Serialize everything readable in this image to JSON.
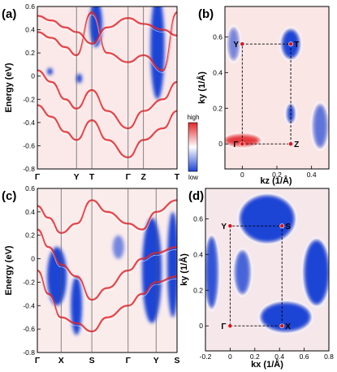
{
  "panel_labels": [
    "(a)",
    "(b)",
    "(c)",
    "(d)"
  ],
  "colorbar": {
    "high_label": "high",
    "low_label": "low",
    "colors": [
      "#1e44d6",
      "#ffffff",
      "#e3262a"
    ]
  },
  "chart_data": [
    {
      "id": "a",
      "type": "heatmap",
      "title": "",
      "ylabel": "Energy (eV)",
      "xlabel": "",
      "ylim": [
        -0.8,
        0.6
      ],
      "yticks": [
        "0.6",
        "0.4",
        "0.2",
        "0",
        "-0.2",
        "-0.4",
        "-0.6",
        "-0.8"
      ],
      "ytick_values": [
        0.6,
        0.4,
        0.2,
        0,
        -0.2,
        -0.4,
        -0.6,
        -0.8
      ],
      "kpath": [
        "Γ",
        "Y",
        "T",
        "Γ",
        "Z",
        "T"
      ],
      "kpath_positions": [
        0,
        0.28,
        0.39,
        0.65,
        0.76,
        1.0
      ],
      "bands": [
        {
          "name": "",
          "x": [
            0,
            0.1,
            0.2,
            0.28,
            0.39,
            0.5,
            0.65,
            0.76,
            0.9,
            1.0
          ],
          "y": [
            0.38,
            0.33,
            0.25,
            0.18,
            0.55,
            0.2,
            0.12,
            0.18,
            0.05,
            0.55
          ]
        },
        {
          "name": "",
          "x": [
            0,
            0.1,
            0.2,
            0.28,
            0.39,
            0.5,
            0.65,
            0.76,
            0.9,
            1.0
          ],
          "y": [
            0.05,
            -0.05,
            -0.2,
            -0.28,
            -0.12,
            -0.3,
            -0.45,
            -0.3,
            -0.2,
            -0.05
          ]
        },
        {
          "name": "",
          "x": [
            0,
            0.1,
            0.2,
            0.28,
            0.39,
            0.5,
            0.65,
            0.76,
            0.9,
            1.0
          ],
          "y": [
            -0.25,
            -0.35,
            -0.48,
            -0.55,
            -0.38,
            -0.55,
            -0.7,
            -0.55,
            -0.45,
            -0.3
          ]
        },
        {
          "name": "",
          "x": [
            0,
            0.1,
            0.2,
            0.28,
            0.39,
            0.5,
            0.65,
            0.76,
            0.9,
            1.0
          ],
          "y": [
            0.52,
            0.48,
            0.42,
            0.38,
            0.28,
            0.42,
            0.5,
            0.45,
            0.4,
            0.35
          ]
        }
      ],
      "pockets": [
        {
          "name": "",
          "x": 0.42,
          "y": 0.45,
          "rx": 0.045,
          "ry": 0.2,
          "level": -1
        },
        {
          "name": "",
          "x": 0.86,
          "y": 0.25,
          "rx": 0.05,
          "ry": 0.45,
          "level": -1
        },
        {
          "name": "",
          "x": 0.3,
          "y": -0.02,
          "rx": 0.02,
          "ry": 0.04,
          "level": -1
        },
        {
          "name": "",
          "x": 0.09,
          "y": 0.04,
          "rx": 0.02,
          "ry": 0.03,
          "level": -1
        }
      ]
    },
    {
      "id": "b",
      "type": "heatmap",
      "title": "",
      "xlabel": "kz (1/Å)",
      "ylabel": "ky (1/Å)",
      "xlim": [
        -0.1,
        0.5
      ],
      "ylim": [
        -0.14,
        0.77
      ],
      "xticks": [
        "0",
        "0.2",
        "0.4"
      ],
      "xtick_values": [
        0,
        0.2,
        0.4
      ],
      "yticks": [
        "0",
        "0.2",
        "0.4",
        "0.6"
      ],
      "ytick_values": [
        0,
        0.2,
        0.4,
        0.6
      ],
      "points": [
        {
          "label": "Γ",
          "x": 0,
          "y": 0
        },
        {
          "label": "Z",
          "x": 0.28,
          "y": 0
        },
        {
          "label": "Y",
          "x": 0,
          "y": 0.56
        },
        {
          "label": "T",
          "x": 0.28,
          "y": 0.56
        }
      ],
      "pockets": [
        {
          "name": "",
          "x": 0.28,
          "y": 0.56,
          "rx": 0.05,
          "ry": 0.08,
          "level": -1
        },
        {
          "name": "",
          "x": 0.28,
          "y": 0.17,
          "rx": 0.02,
          "ry": 0.05,
          "level": -1
        },
        {
          "name": "",
          "x": -0.05,
          "y": 0.56,
          "rx": 0.03,
          "ry": 0.09,
          "level": -0.6
        },
        {
          "name": "",
          "x": 0.45,
          "y": 0.1,
          "rx": 0.04,
          "ry": 0.12,
          "level": -0.7
        },
        {
          "name": "",
          "x": 0.0,
          "y": 0.02,
          "rx": 0.1,
          "ry": 0.03,
          "level": 0.9
        }
      ]
    },
    {
      "id": "c",
      "type": "heatmap",
      "title": "",
      "ylabel": "Energy (eV)",
      "xlabel": "",
      "ylim": [
        -0.8,
        0.6
      ],
      "yticks": [
        "0.6",
        "0.4",
        "0.2",
        "0",
        "-0.2",
        "-0.4",
        "-0.6",
        "-0.8"
      ],
      "ytick_values": [
        0.6,
        0.4,
        0.2,
        0,
        -0.2,
        -0.4,
        -0.6,
        -0.8
      ],
      "kpath": [
        "Γ",
        "X",
        "S",
        "Γ",
        "Y",
        "S"
      ],
      "kpath_positions": [
        0,
        0.17,
        0.39,
        0.65,
        0.85,
        1.0
      ],
      "bands": [
        {
          "name": "",
          "x": [
            0,
            0.08,
            0.17,
            0.28,
            0.39,
            0.5,
            0.65,
            0.75,
            0.85,
            1.0
          ],
          "y": [
            0.25,
            0.1,
            -0.05,
            -0.15,
            -0.35,
            -0.25,
            -0.1,
            0.0,
            0.05,
            0.1
          ]
        },
        {
          "name": "",
          "x": [
            0,
            0.08,
            0.17,
            0.28,
            0.39,
            0.5,
            0.65,
            0.75,
            0.85,
            1.0
          ],
          "y": [
            -0.1,
            -0.3,
            -0.5,
            -0.55,
            -0.62,
            -0.5,
            -0.4,
            -0.3,
            -0.2,
            -0.15
          ]
        },
        {
          "name": "",
          "x": [
            0,
            0.08,
            0.17,
            0.28,
            0.39,
            0.5,
            0.65,
            0.75,
            0.85,
            1.0
          ],
          "y": [
            0.45,
            0.35,
            0.22,
            0.3,
            0.5,
            0.4,
            0.3,
            0.25,
            0.4,
            0.5
          ]
        }
      ],
      "pockets": [
        {
          "name": "",
          "x": 0.14,
          "y": -0.15,
          "rx": 0.07,
          "ry": 0.25,
          "level": -1
        },
        {
          "name": "",
          "x": 0.28,
          "y": -0.4,
          "rx": 0.04,
          "ry": 0.25,
          "level": -1
        },
        {
          "name": "",
          "x": 0.82,
          "y": -0.1,
          "rx": 0.07,
          "ry": 0.45,
          "level": -1
        },
        {
          "name": "",
          "x": 0.97,
          "y": -0.05,
          "rx": 0.04,
          "ry": 0.45,
          "level": -1
        },
        {
          "name": "",
          "x": 0.58,
          "y": 0.1,
          "rx": 0.04,
          "ry": 0.1,
          "level": -0.6
        }
      ]
    },
    {
      "id": "d",
      "type": "heatmap",
      "title": "",
      "xlabel": "kx (1/Å)",
      "ylabel": "ky (1/Å)",
      "xlim": [
        -0.2,
        0.8
      ],
      "ylim": [
        -0.14,
        0.77
      ],
      "xticks": [
        "-0.2",
        "0",
        "0.2",
        "0.4",
        "0.6",
        "0.8"
      ],
      "xtick_values": [
        -0.2,
        0,
        0.2,
        0.4,
        0.6,
        0.8
      ],
      "yticks": [
        "0",
        "0.2",
        "0.4",
        "0.6"
      ],
      "ytick_values": [
        0,
        0.2,
        0.4,
        0.6
      ],
      "points": [
        {
          "label": "Γ",
          "x": 0,
          "y": 0
        },
        {
          "label": "X",
          "x": 0.42,
          "y": 0
        },
        {
          "label": "Y",
          "x": 0,
          "y": 0.56
        },
        {
          "label": "S",
          "x": 0.42,
          "y": 0.56
        }
      ],
      "pockets": [
        {
          "name": "",
          "x": 0.3,
          "y": 0.6,
          "rx": 0.22,
          "ry": 0.13,
          "level": -1
        },
        {
          "name": "",
          "x": 0.45,
          "y": 0.05,
          "rx": 0.2,
          "ry": 0.08,
          "level": -1
        },
        {
          "name": "",
          "x": 0.7,
          "y": 0.3,
          "rx": 0.1,
          "ry": 0.18,
          "level": -1
        },
        {
          "name": "",
          "x": -0.15,
          "y": 0.3,
          "rx": 0.05,
          "ry": 0.2,
          "level": -0.9
        },
        {
          "name": "",
          "x": 0.1,
          "y": 0.3,
          "rx": 0.06,
          "ry": 0.12,
          "level": -0.8
        }
      ]
    }
  ]
}
